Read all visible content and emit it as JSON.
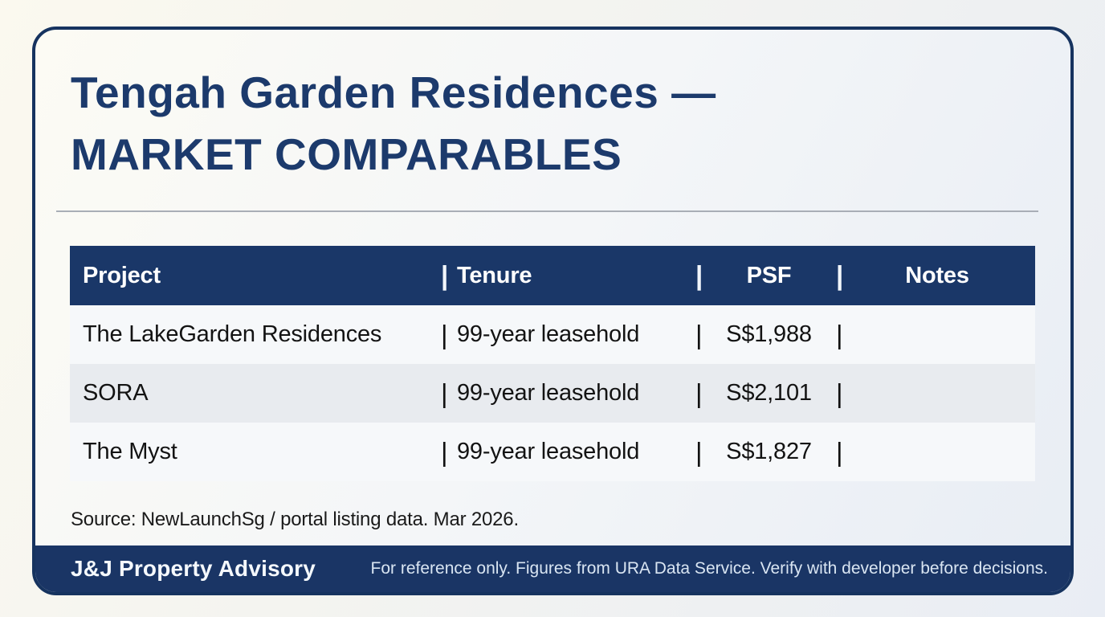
{
  "page": {
    "title_line1": "Tengah Garden Residences —",
    "title_line2": "MARKET COMPARABLES"
  },
  "table": {
    "separator": "|",
    "columns": [
      "Project",
      "Tenure",
      "PSF",
      "Notes"
    ],
    "rows": [
      {
        "project": "The LakeGarden Residences",
        "tenure": "99-year leasehold",
        "psf": "S$1,988",
        "notes": ""
      },
      {
        "project": "SORA",
        "tenure": "99-year leasehold",
        "psf": "S$2,101",
        "notes": ""
      },
      {
        "project": "The Myst",
        "tenure": "99-year leasehold",
        "psf": "S$1,827",
        "notes": ""
      }
    ]
  },
  "source_note": "Source: NewLaunchSg / portal listing data. Mar 2026.",
  "footer": {
    "brand": "J&J Property Advisory",
    "disclaimer": "For reference only. Figures from URA Data Service. Verify with developer before decisions."
  },
  "colors": {
    "navy_header": "#1a3768",
    "navy_footer": "#1a3565",
    "navy_border": "#16335f",
    "title_navy": "#1c3a6c",
    "row_light": "#f6f8fa",
    "row_dark": "#e8ebef",
    "footer_text": "#d9e5f2"
  }
}
